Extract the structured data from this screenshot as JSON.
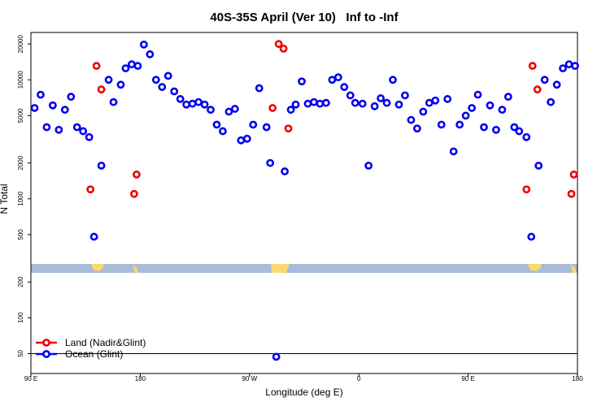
{
  "chart_data": {
    "type": "scatter",
    "title": "40S-35S April (Ver 10)   Inf to -Inf",
    "xlabel": "Longitude (deg E)",
    "ylabel": "N Total",
    "log_y": true,
    "legend": "bottom-left",
    "xlim": [
      90,
      540
    ],
    "ylim": [
      34,
      25000
    ],
    "xticks": [
      {
        "value": 90,
        "label": "90 E"
      },
      180,
      {
        "value": 270,
        "label": "90 W"
      },
      {
        "value": 360,
        "label": "0"
      },
      {
        "value": 450,
        "label": "90 E"
      },
      {
        "value": 540,
        "label": "180"
      }
    ],
    "yticks": [
      50,
      100,
      200,
      500,
      1000,
      2000,
      5000,
      10000,
      20000
    ],
    "reference_line": 50,
    "series": [
      {
        "name": "Land (Nadir&Glint)",
        "color": "#ee0000",
        "x": [
          139,
          144,
          148,
          175,
          177,
          289,
          294,
          298,
          302,
          498,
          503,
          507,
          535,
          537
        ],
        "values": [
          1200,
          13100,
          8300,
          1100,
          1600,
          5800,
          20000,
          18300,
          3900,
          1200,
          13100,
          8300,
          1100,
          1600
        ]
      },
      {
        "name": "Ocean (Glint)",
        "color": "#0000ee",
        "x": [
          93,
          98,
          103,
          108,
          113,
          118,
          123,
          128,
          133,
          138,
          142,
          148,
          154,
          158,
          164,
          168,
          173,
          178,
          183,
          188,
          193,
          198,
          203,
          208,
          213,
          218,
          223,
          228,
          233,
          238,
          243,
          248,
          253,
          258,
          263,
          268,
          273,
          278,
          284,
          287,
          292,
          299,
          304,
          308,
          313,
          318,
          323,
          328,
          333,
          338,
          343,
          348,
          353,
          357,
          363,
          368,
          373,
          378,
          383,
          388,
          393,
          398,
          403,
          408,
          413,
          418,
          423,
          428,
          433,
          438,
          443,
          448,
          453,
          458,
          463,
          468,
          473,
          478,
          483,
          488,
          492,
          498,
          502,
          508,
          513,
          518,
          523,
          528,
          533,
          538
        ],
        "values": [
          5800,
          7500,
          4000,
          6100,
          3800,
          5600,
          7200,
          4000,
          3700,
          3300,
          480,
          1900,
          10000,
          6500,
          9100,
          12500,
          13500,
          13100,
          19800,
          16400,
          10000,
          8700,
          10800,
          8000,
          6900,
          6200,
          6300,
          6500,
          6200,
          5600,
          4200,
          3700,
          5400,
          5700,
          3100,
          3200,
          4200,
          8500,
          4000,
          2000,
          47,
          1700,
          5600,
          6200,
          9700,
          6300,
          6500,
          6300,
          6400,
          10000,
          10500,
          8700,
          7400,
          6400,
          6300,
          1900,
          6000,
          7000,
          6400,
          10000,
          6200,
          7400,
          4600,
          3900,
          5400,
          6400,
          6700,
          4200,
          6900,
          2500,
          4200,
          5000,
          5800,
          7500,
          4000,
          6100,
          3800,
          5600,
          7200,
          4000,
          3700,
          3300,
          480,
          1900,
          10000,
          6500,
          9100,
          12500,
          13500,
          13100
        ]
      }
    ]
  }
}
